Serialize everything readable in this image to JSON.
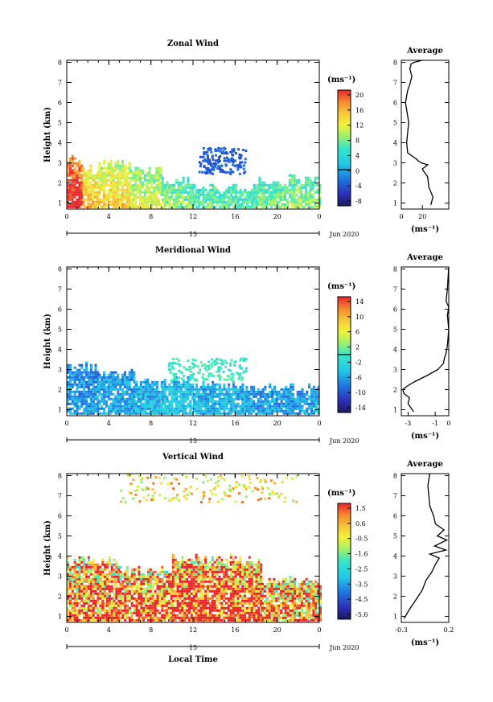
{
  "chart_data": [
    {
      "type": "heatmap",
      "title": "Zonal Wind",
      "ylabel": "Height (km)",
      "xlim": [
        0,
        24
      ],
      "ylim": [
        0.7,
        8.1
      ],
      "xticks": [
        "0",
        "4",
        "8",
        "12",
        "16",
        "20",
        "0"
      ],
      "yticks": [
        "1",
        "2",
        "3",
        "4",
        "5",
        "6",
        "7",
        "8"
      ],
      "date_axis": {
        "day": "15",
        "month": "Jun 2020"
      },
      "colorbar": {
        "unit": "(ms⁻¹)",
        "ticks": [
          "20",
          "16",
          "12",
          "8",
          "4",
          "0",
          "-4",
          "-8"
        ],
        "vmin": -10,
        "vmax": 22,
        "zero_line": 0
      },
      "fields": [
        {
          "x": [
            0,
            1.5
          ],
          "ytop": 3.1,
          "v": 18
        },
        {
          "x": [
            1.5,
            3
          ],
          "ytop": 2.6,
          "v": 12
        },
        {
          "x": [
            3,
            6
          ],
          "ytop": 2.9,
          "v": 10
        },
        {
          "x": [
            6,
            9
          ],
          "ytop": 2.6,
          "v": 8
        },
        {
          "x": [
            9,
            12
          ],
          "ytop": 2.1,
          "v": 6
        },
        {
          "x": [
            12,
            18
          ],
          "ytop": 1.7,
          "v": 5
        },
        {
          "x": [
            18,
            24
          ],
          "ytop": 2.1,
          "v": 6
        }
      ],
      "features": [
        {
          "x": [
            12.5,
            17
          ],
          "y": [
            2.5,
            3.8
          ],
          "v": -4
        }
      ],
      "average": {
        "title": "Average",
        "xlabel": "(ms⁻¹)",
        "xlim": [
          0,
          45
        ],
        "xticks": [
          "0",
          "20"
        ],
        "profile_x": [
          28,
          30,
          26,
          25,
          21,
          20,
          25,
          19,
          16,
          14,
          10,
          6,
          5,
          7,
          4,
          6,
          8,
          9,
          10,
          9,
          8,
          9,
          9,
          12,
          20
        ],
        "profile_y": [
          0.9,
          1.3,
          1.8,
          2.3,
          2.6,
          2.7,
          2.9,
          3.0,
          3.1,
          3.2,
          3.35,
          3.5,
          4.0,
          5.0,
          6.0,
          6.6,
          6.9,
          7.1,
          7.3,
          7.5,
          7.7,
          7.8,
          7.9,
          8.0,
          8.1
        ]
      }
    },
    {
      "type": "heatmap",
      "title": "Meridional Wind",
      "ylabel": "Height (km)",
      "xlim": [
        0,
        24
      ],
      "ylim": [
        0.7,
        8.1
      ],
      "xticks": [
        "0",
        "4",
        "8",
        "12",
        "16",
        "20",
        "0"
      ],
      "yticks": [
        "1",
        "2",
        "3",
        "4",
        "5",
        "6",
        "7",
        "8"
      ],
      "date_axis": {
        "day": "15",
        "month": "Jun 2020"
      },
      "colorbar": {
        "unit": "(ms⁻¹)",
        "ticks": [
          "14",
          "10",
          "6",
          "2",
          "-2",
          "-6",
          "-10",
          "-14"
        ],
        "vmin": -16,
        "vmax": 16,
        "zero_line": 0
      },
      "fields": [
        {
          "x": [
            0,
            3
          ],
          "ytop": 3.1,
          "v": -8
        },
        {
          "x": [
            3,
            6.5
          ],
          "ytop": 2.8,
          "v": -7
        },
        {
          "x": [
            6.5,
            9
          ],
          "ytop": 2.3,
          "v": -6
        },
        {
          "x": [
            9,
            12
          ],
          "ytop": 2.4,
          "v": -5
        },
        {
          "x": [
            12,
            17
          ],
          "ytop": 2.2,
          "v": -6
        },
        {
          "x": [
            17,
            24
          ],
          "ytop": 2.0,
          "v": -7
        }
      ],
      "features": [
        {
          "x": [
            9.5,
            17
          ],
          "y": [
            2.5,
            3.6
          ],
          "v": 0
        }
      ],
      "average": {
        "title": "Average",
        "xlabel": "(ms⁻¹)",
        "xlim": [
          -3.5,
          0
        ],
        "xticks": [
          "-3",
          "-1",
          "0"
        ],
        "profile_x": [
          -2.6,
          -3.0,
          -2.9,
          -3.3,
          -3.4,
          -3.0,
          -2.5,
          -1.6,
          -0.8,
          -0.4,
          -0.3,
          -0.2,
          -0.1,
          0.0,
          -0.1,
          0.0,
          -0.2,
          -0.1,
          -0.05,
          0.0
        ],
        "profile_y": [
          0.9,
          1.3,
          1.6,
          1.8,
          2.0,
          2.2,
          2.4,
          2.7,
          3.0,
          3.3,
          3.6,
          3.8,
          4.2,
          5.0,
          5.7,
          6.1,
          6.4,
          7.0,
          7.6,
          8.1
        ]
      }
    },
    {
      "type": "heatmap",
      "title": "Vertical Wind",
      "ylabel": "Height (km)",
      "xlabel": "Local Time",
      "xlim": [
        0,
        24
      ],
      "ylim": [
        0.7,
        8.1
      ],
      "xticks": [
        "0",
        "4",
        "8",
        "12",
        "16",
        "20",
        "0"
      ],
      "yticks": [
        "1",
        "2",
        "3",
        "4",
        "5",
        "6",
        "7",
        "8"
      ],
      "date_axis": {
        "day": "15",
        "month": "Jun 2020"
      },
      "colorbar": {
        "unit": "(ms⁻¹)",
        "ticks": [
          "1.5",
          "0.6",
          "-0.5",
          "-1.6",
          "-2.5",
          "-3.5",
          "-4.5",
          "-5.6"
        ],
        "vmin": -6.2,
        "vmax": 2.2,
        "zero_line": null
      },
      "fields": [
        {
          "x": [
            0,
            5
          ],
          "ytop": 3.7,
          "v": 0.2
        },
        {
          "x": [
            5,
            10
          ],
          "ytop": 3.2,
          "v": 0.5
        },
        {
          "x": [
            10,
            18.5
          ],
          "ytop": 3.8,
          "v": 0.8
        },
        {
          "x": [
            18.5,
            24
          ],
          "ytop": 2.7,
          "v": 0.3
        }
      ],
      "features": [
        {
          "x": [
            5,
            22
          ],
          "y": [
            6.7,
            8.1
          ],
          "v": 0.1
        }
      ],
      "average": {
        "title": "Average",
        "xlabel": "(ms⁻¹)",
        "xlim": [
          -0.3,
          0.2
        ],
        "xticks": [
          "-0.3",
          "0.2"
        ],
        "profile_x": [
          -0.27,
          -0.22,
          -0.15,
          -0.08,
          -0.04,
          0.02,
          0.06,
          0.1,
          0.0,
          0.17,
          0.05,
          0.18,
          0.08,
          0.15,
          0.06,
          0.04,
          0.0,
          -0.01,
          -0.02,
          -0.01,
          0.0
        ],
        "profile_y": [
          0.9,
          1.3,
          1.8,
          2.3,
          2.8,
          3.2,
          3.6,
          3.9,
          4.1,
          4.3,
          4.5,
          4.8,
          5.0,
          5.3,
          5.6,
          6.0,
          6.5,
          7.0,
          7.5,
          7.8,
          8.1
        ]
      }
    }
  ]
}
